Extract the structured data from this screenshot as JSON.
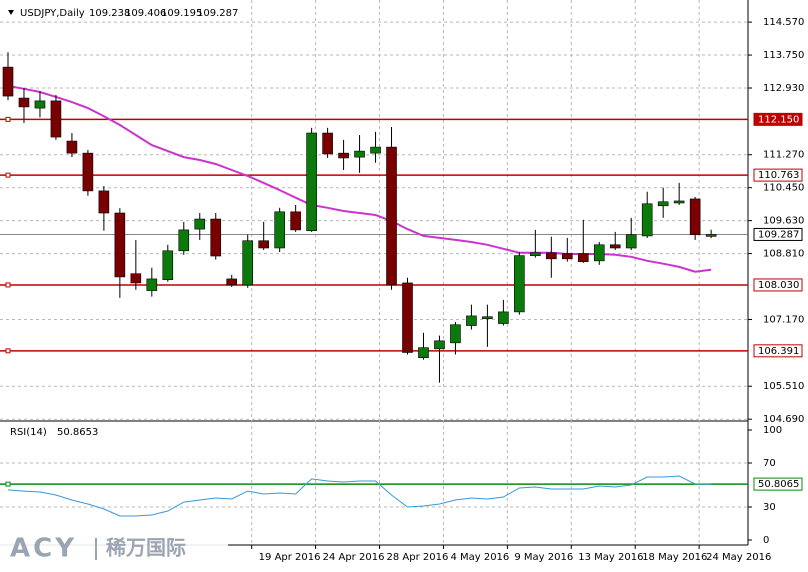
{
  "chart_data": {
    "type": "candlestick",
    "title": "USDJPY,Daily",
    "categories": [
      null,
      null,
      null,
      null,
      null,
      null,
      null,
      null,
      null,
      null,
      null,
      null,
      null,
      null,
      null,
      null,
      "19 Apr 2016",
      null,
      null,
      null,
      "24 Apr 2016",
      null,
      null,
      null,
      "28 Apr 2016",
      null,
      null,
      null,
      "4 May 2016",
      null,
      null,
      null,
      "9 May 2016",
      null,
      null,
      null,
      "13 May 2016",
      null,
      null,
      null,
      "18 May 2016",
      null,
      null,
      null,
      "24 May 2016"
    ],
    "open": [
      113.45,
      112.68,
      112.43,
      112.61,
      111.61,
      111.31,
      110.37,
      109.82,
      108.31,
      107.89,
      108.16,
      108.88,
      109.42,
      109.67,
      108.18,
      108.03,
      109.13,
      108.95,
      109.85,
      109.38,
      111.81,
      111.31,
      111.21,
      111.31,
      111.46,
      108.08,
      106.22,
      106.44,
      106.59,
      107.02,
      107.19,
      107.07,
      107.36,
      108.76,
      108.83,
      108.81,
      108.81,
      108.63,
      109.03,
      108.95,
      109.25,
      110.0,
      110.07,
      110.17,
      109.238
    ],
    "high": [
      113.82,
      112.93,
      112.85,
      112.76,
      111.81,
      111.39,
      110.49,
      109.94,
      109.15,
      108.46,
      109.03,
      109.6,
      109.82,
      109.82,
      108.28,
      109.28,
      109.6,
      109.95,
      110.02,
      111.94,
      111.94,
      111.64,
      111.76,
      111.84,
      111.96,
      108.21,
      106.84,
      106.77,
      107.11,
      107.54,
      107.54,
      107.66,
      108.85,
      109.4,
      109.23,
      109.2,
      109.65,
      109.1,
      109.35,
      109.7,
      110.35,
      110.45,
      110.57,
      110.22,
      109.406
    ],
    "low": [
      112.63,
      112.06,
      112.2,
      111.64,
      111.21,
      110.25,
      109.38,
      107.71,
      107.91,
      107.74,
      108.11,
      108.78,
      109.15,
      108.66,
      107.98,
      107.96,
      108.9,
      108.85,
      109.35,
      109.35,
      111.19,
      110.89,
      110.82,
      111.07,
      107.91,
      106.3,
      106.17,
      105.6,
      106.3,
      106.92,
      106.49,
      107.02,
      107.29,
      108.71,
      108.21,
      108.61,
      108.58,
      108.53,
      108.9,
      108.9,
      109.2,
      109.7,
      110.02,
      109.15,
      109.195
    ],
    "close": [
      112.73,
      112.46,
      112.61,
      111.71,
      111.31,
      110.37,
      109.82,
      108.23,
      108.08,
      108.18,
      108.88,
      109.4,
      109.67,
      108.75,
      108.03,
      109.13,
      108.95,
      109.85,
      109.4,
      111.81,
      111.29,
      111.19,
      111.36,
      111.46,
      108.03,
      106.35,
      106.47,
      106.64,
      107.04,
      107.26,
      107.24,
      107.36,
      108.76,
      108.83,
      108.68,
      108.68,
      108.61,
      109.03,
      108.95,
      109.28,
      110.05,
      110.1,
      110.12,
      109.28,
      109.287
    ],
    "up_color": "#0b7a0b",
    "down_color": "#7a0000",
    "ma": {
      "color": "#cc33cc",
      "values": [
        112.98,
        112.91,
        112.83,
        112.71,
        112.58,
        112.43,
        112.23,
        112.01,
        111.76,
        111.51,
        111.36,
        111.21,
        111.14,
        111.04,
        110.89,
        110.74,
        110.57,
        110.39,
        110.2,
        110.02,
        109.95,
        109.87,
        109.82,
        109.77,
        109.62,
        109.42,
        109.25,
        109.2,
        109.15,
        109.1,
        109.03,
        108.93,
        108.83,
        108.83,
        108.83,
        108.8,
        108.8,
        108.8,
        108.78,
        108.73,
        108.63,
        108.56,
        108.48,
        108.36,
        108.41
      ]
    },
    "ylim": [
      104.67,
      115.12
    ],
    "yticks": [
      {
        "value": 114.57,
        "label": "114.570"
      },
      {
        "value": 113.75,
        "label": "113.750"
      },
      {
        "value": 112.93,
        "label": "112.930"
      },
      {
        "value": 111.27,
        "label": "111.270"
      },
      {
        "value": 110.45,
        "label": "110.450"
      },
      {
        "value": 109.63,
        "label": "109.630"
      },
      {
        "value": 108.81,
        "label": "108.810"
      },
      {
        "value": 107.17,
        "label": "107.170"
      },
      {
        "value": 105.51,
        "label": "105.510"
      },
      {
        "value": 104.69,
        "label": "104.690"
      }
    ],
    "levels": [
      {
        "value": 112.15,
        "label": "112.150",
        "color": "#c00000",
        "filled": true
      },
      {
        "value": 110.763,
        "color": "#c00000",
        "filled": false
      },
      {
        "value": 108.03,
        "label": "108.030",
        "color": "#c00000",
        "filled": false
      },
      {
        "value": 106.391,
        "color": "#c00000",
        "filled": false
      }
    ],
    "price_line_color": "#777777",
    "grid": true,
    "rsi": {
      "label": "RSI(14)",
      "color": "#3399dd",
      "values": [
        45.5,
        44.5,
        43.6,
        40.9,
        36.4,
        32.7,
        28.2,
        21.8,
        21.8,
        22.7,
        26.4,
        34.5,
        36.4,
        38.2,
        37.3,
        44.5,
        41.8,
        42.7,
        41.8,
        55.5,
        53.6,
        52.7,
        53.6,
        53.6,
        40.9,
        30.0,
        30.9,
        32.7,
        36.4,
        38.2,
        37.3,
        39.1,
        47.3,
        48.2,
        46.4,
        46.4,
        46.4,
        49.1,
        48.2,
        50.0,
        57.3,
        57.3,
        58.2,
        50.9,
        50.8653
      ],
      "ylim": [
        0,
        100
      ],
      "yticks": [
        100,
        70,
        30,
        0
      ],
      "level": {
        "value": 50.8065,
        "color": "#0a8a0a"
      }
    },
    "watermark": {
      "brand": "ACY",
      "cn": "稀万国际"
    }
  }
}
